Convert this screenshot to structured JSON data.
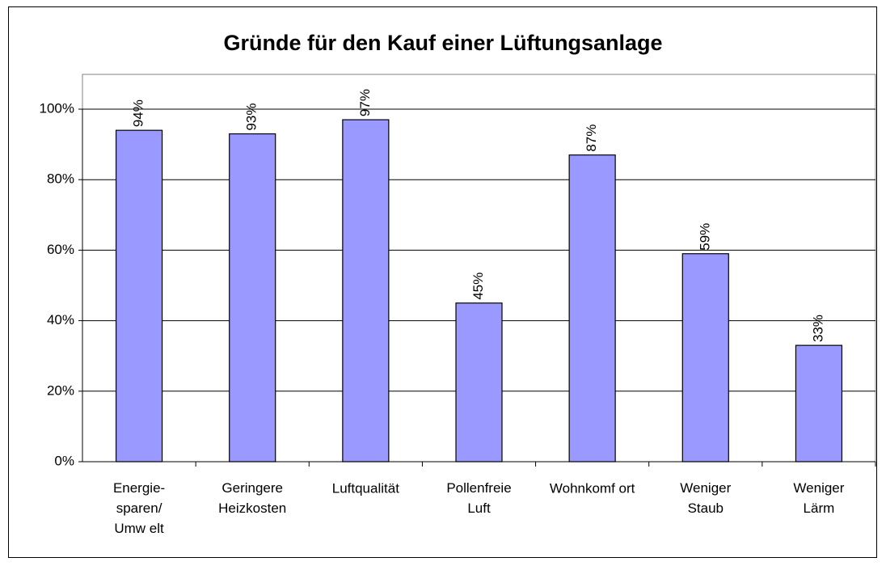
{
  "chart_data": {
    "type": "bar",
    "title": "Gründe für den Kauf einer Lüftungsanlage",
    "categories": [
      "Energie-\nsparen/\nUmw elt",
      "Geringere\nHeizkosten",
      "Luftqualität",
      "Pollenfreie\nLuft",
      "Wohnkomf ort",
      "Weniger\nStaub",
      "Weniger\nLärm"
    ],
    "values": [
      94,
      93,
      97,
      45,
      87,
      59,
      33
    ],
    "value_labels": [
      "94%",
      "93%",
      "97%",
      "45%",
      "87%",
      "59%",
      "33%"
    ],
    "color": "#9999ff",
    "ylim": [
      0,
      100
    ],
    "yticks": [
      {
        "value": 0,
        "label": "0%"
      },
      {
        "value": 20,
        "label": "20%"
      },
      {
        "value": 40,
        "label": "40%"
      },
      {
        "value": 60,
        "label": "60%"
      },
      {
        "value": 80,
        "label": "80%"
      },
      {
        "value": 100,
        "label": "100%"
      }
    ],
    "grid": true
  }
}
